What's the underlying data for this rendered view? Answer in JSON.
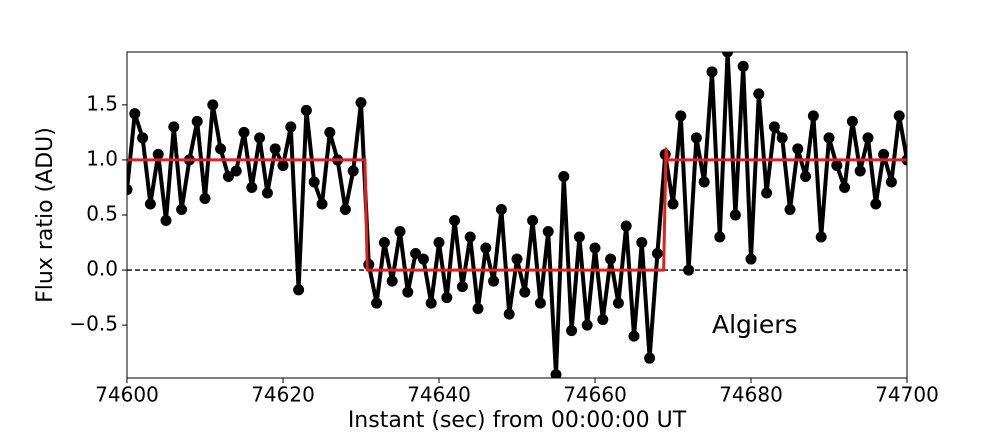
{
  "chart_data": {
    "type": "line",
    "xlabel": "Instant (sec) from 00:00:00 UT",
    "ylabel": "Flux ratio (ADU)",
    "annotation": "Algiers",
    "xlim": [
      74600,
      74700
    ],
    "ylim": [
      -0.98,
      1.98
    ],
    "xticks": [
      74600,
      74620,
      74640,
      74660,
      74680,
      74700
    ],
    "yticks": [
      {
        "value": -0.5,
        "label": "−0.5"
      },
      {
        "value": 0,
        "label": "0.0"
      },
      0.5,
      {
        "value": 1,
        "label": "1.0"
      },
      1.5
    ],
    "reference_line": 0,
    "series": [
      {
        "color": "#000000",
        "markers": true,
        "x": [
          74600,
          74601,
          74602,
          74603,
          74604,
          74605,
          74606,
          74607,
          74608,
          74609,
          74610,
          74611,
          74612,
          74613,
          74614,
          74615,
          74616,
          74617,
          74618,
          74619,
          74620,
          74621,
          74622,
          74623,
          74624,
          74625,
          74626,
          74627,
          74628,
          74629,
          74630,
          74631,
          74632,
          74633,
          74634,
          74635,
          74636,
          74637,
          74638,
          74639,
          74640,
          74641,
          74642,
          74643,
          74644,
          74645,
          74646,
          74647,
          74648,
          74649,
          74650,
          74651,
          74652,
          74653,
          74654,
          74655,
          74656,
          74657,
          74658,
          74659,
          74660,
          74661,
          74662,
          74663,
          74664,
          74665,
          74666,
          74667,
          74668,
          74669,
          74670,
          74671,
          74672,
          74673,
          74674,
          74675,
          74676,
          74677,
          74678,
          74679,
          74680,
          74681,
          74682,
          74683,
          74684,
          74685,
          74686,
          74687,
          74688,
          74689,
          74690,
          74691,
          74692,
          74693,
          74694,
          74695,
          74696,
          74697,
          74698,
          74699,
          74700
        ],
        "values": [
          0.73,
          1.42,
          1.2,
          0.6,
          1.05,
          0.45,
          1.3,
          0.55,
          1.0,
          1.35,
          0.65,
          1.5,
          1.1,
          0.85,
          0.9,
          1.25,
          0.75,
          1.2,
          0.7,
          1.1,
          0.95,
          1.3,
          -0.18,
          1.45,
          0.8,
          0.6,
          1.25,
          1.0,
          0.55,
          0.9,
          1.52,
          0.05,
          -0.3,
          0.25,
          -0.1,
          0.35,
          -0.2,
          0.15,
          0.1,
          -0.3,
          0.25,
          -0.25,
          0.45,
          -0.15,
          0.3,
          -0.35,
          0.2,
          -0.1,
          0.55,
          -0.4,
          0.1,
          -0.2,
          0.45,
          -0.3,
          0.35,
          -0.95,
          0.85,
          -0.55,
          0.3,
          -0.5,
          0.2,
          -0.45,
          0.1,
          -0.3,
          0.4,
          -0.6,
          0.25,
          -0.8,
          0.15,
          1.05,
          0.6,
          1.4,
          0.0,
          1.2,
          0.8,
          1.8,
          0.3,
          1.98,
          0.5,
          1.85,
          0.1,
          1.6,
          0.7,
          1.3,
          1.2,
          0.55,
          1.1,
          0.85,
          1.4,
          0.3,
          1.2,
          0.95,
          0.75,
          1.35,
          0.9,
          1.2,
          0.6,
          1.05,
          0.8,
          1.4,
          1.0
        ]
      },
      {
        "color": "#e02020",
        "markers": false,
        "x": [
          74600,
          74630.5,
          74630.8,
          74668.8,
          74669.1,
          74669.3,
          74700
        ],
        "values": [
          1,
          1,
          0,
          0,
          1.1,
          1,
          1
        ]
      }
    ]
  }
}
